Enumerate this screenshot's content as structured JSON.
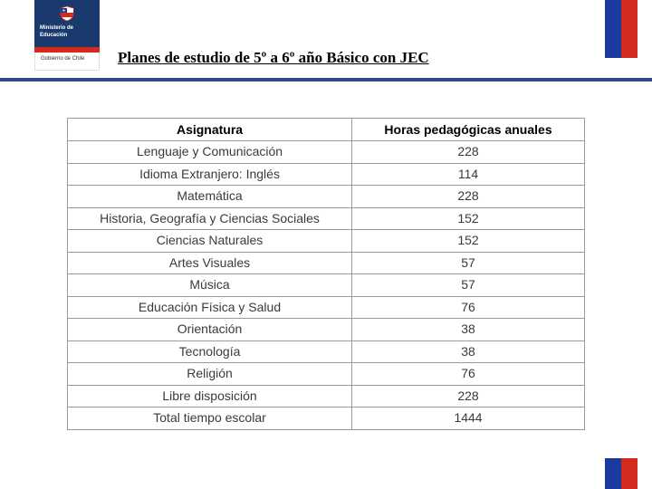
{
  "logo": {
    "line1": "Ministerio de",
    "line2": "Educación",
    "footer": "Gobierno de Chile"
  },
  "title": "Planes  de estudio de 5º a 6º año Básico con JEC",
  "table": {
    "headers": [
      "Asignatura",
      "Horas pedagógicas anuales"
    ],
    "rows": [
      {
        "subject": "Lenguaje y Comunicación",
        "hours": "228"
      },
      {
        "subject": "Idioma Extranjero: Inglés",
        "hours": "114"
      },
      {
        "subject": "Matemática",
        "hours": "228"
      },
      {
        "subject": "Historia, Geografía y Ciencias Sociales",
        "hours": "152"
      },
      {
        "subject": "Ciencias Naturales",
        "hours": "152"
      },
      {
        "subject": "Artes Visuales",
        "hours": "57"
      },
      {
        "subject": "Música",
        "hours": "57"
      },
      {
        "subject": "Educación Física y Salud",
        "hours": "76"
      },
      {
        "subject": "Orientación",
        "hours": "38"
      },
      {
        "subject": "Tecnología",
        "hours": "38"
      },
      {
        "subject": "Religión",
        "hours": "76"
      },
      {
        "subject": "Libre disposición",
        "hours": "228"
      },
      {
        "subject": "Total tiempo escolar",
        "hours": "1444"
      }
    ]
  },
  "colors": {
    "header_divider": "#2b4a8b",
    "flag_blue": "#1a3a9e",
    "flag_red": "#d52b1e",
    "logo_blue": "#1a3a6e",
    "table_border": "#9a9a9a",
    "text": "#3a3a3a"
  }
}
